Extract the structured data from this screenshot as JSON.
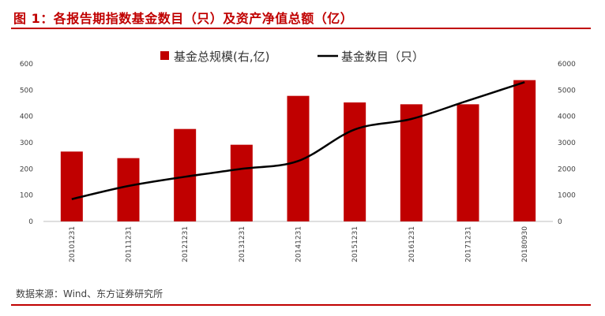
{
  "title": "图 1：各报告期指数基金数目（只）及资产净值总额（亿）",
  "source": "数据来源：Wind、东方证券研究所",
  "colors": {
    "accent": "#c00000",
    "bar": "#c00000",
    "line": "#000000"
  },
  "chart_data": {
    "type": "bar",
    "categories": [
      "20101231",
      "20111231",
      "20121231",
      "20131231",
      "20141231",
      "20151231",
      "20161231",
      "20171231",
      "20180930"
    ],
    "series": [
      {
        "name": "基金总规模(右,亿)",
        "type": "bar",
        "axis": "left",
        "values": [
          266,
          241,
          352,
          292,
          478,
          453,
          446,
          446,
          538
        ]
      },
      {
        "name": "基金数目（只）",
        "type": "line",
        "axis": "right",
        "values": [
          850,
          1350,
          1700,
          2000,
          2300,
          3500,
          3900,
          4600,
          5300
        ]
      }
    ],
    "y_left": {
      "ylim": [
        0,
        600
      ],
      "ticks": [
        "0",
        "100",
        "200",
        "300",
        "400",
        "500",
        "600"
      ]
    },
    "y_right": {
      "ylim": [
        0,
        6000
      ],
      "ticks": [
        "0",
        "1000",
        "2000",
        "3000",
        "4000",
        "5000",
        "6000"
      ]
    },
    "legend": {
      "placement": "top",
      "labels": [
        "基金总规模(右,亿)",
        "基金数目（只）"
      ]
    },
    "grid": false
  }
}
